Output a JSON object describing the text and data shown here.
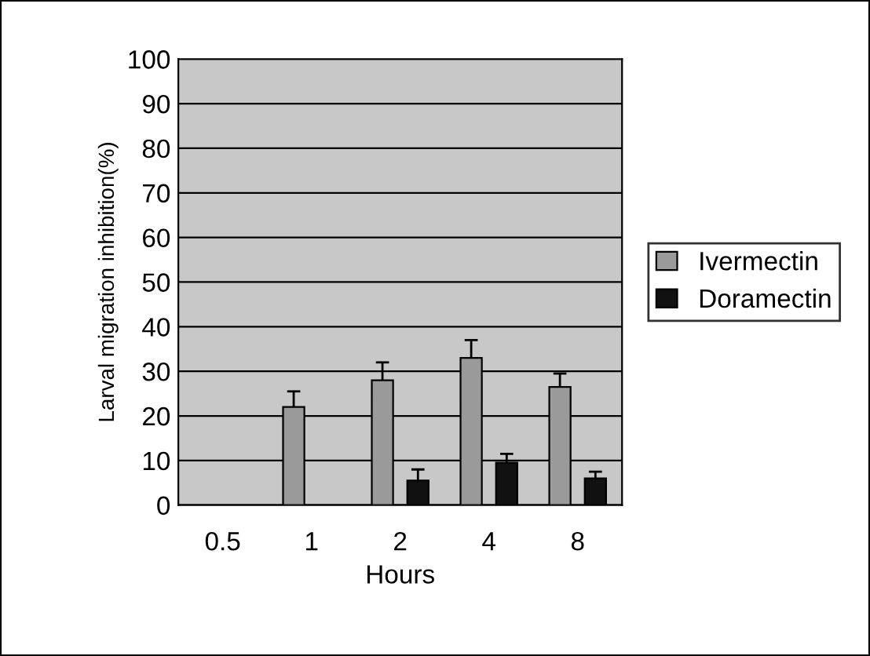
{
  "chart_data": {
    "type": "bar",
    "xlabel": "Hours",
    "ylabel": "Larval migration inhibition(%)",
    "categories": [
      "0.5",
      "1",
      "2",
      "4",
      "8"
    ],
    "series": [
      {
        "name": "Ivermectin",
        "color": "#9a9a9a",
        "values": [
          null,
          22,
          28,
          33,
          26.5
        ],
        "errors": [
          null,
          3.5,
          4,
          4,
          3
        ]
      },
      {
        "name": "Doramectin",
        "color": "#111111",
        "values": [
          null,
          null,
          5.5,
          9.5,
          6
        ],
        "errors": [
          null,
          null,
          2.5,
          2,
          1.5
        ]
      }
    ],
    "ylim": [
      0,
      100
    ],
    "yticks": [
      0,
      10,
      20,
      30,
      40,
      50,
      60,
      70,
      80,
      90,
      100
    ],
    "grid": "y",
    "legend": "right"
  }
}
